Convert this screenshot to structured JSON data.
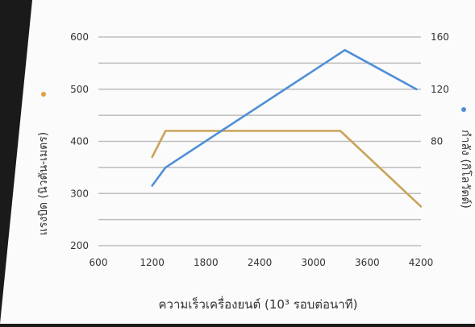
{
  "chart_data": {
    "type": "line",
    "x_label": "ความเร็วเครื่องยนต์ (10³ รอบต่อนาที)",
    "y_left_label": "แรงบิด (นิวตัน-เมตร)",
    "y_right_label": "กำลัง (กิโลวัตต์)",
    "x_ticks": [
      600,
      1200,
      1800,
      2400,
      3000,
      3600,
      4200
    ],
    "y_left_ticks": [
      200,
      300,
      400,
      500,
      600
    ],
    "y_right_ticks": [
      80,
      120,
      160
    ],
    "xlim": [
      600,
      4200
    ],
    "y_left_lim": [
      200,
      600
    ],
    "y_right_lim": [
      0,
      160
    ],
    "grid": true,
    "series": [
      {
        "key": "torque",
        "axis": "left",
        "color": "#c9a45c",
        "x": [
          1200,
          1350,
          3300,
          4200
        ],
        "y": [
          370,
          420,
          420,
          275
        ]
      },
      {
        "key": "power",
        "axis": "right",
        "color": "#4f8fd6",
        "x": [
          1200,
          1350,
          3350,
          4150
        ],
        "y": [
          46,
          60,
          150,
          120
        ]
      }
    ],
    "legend_markers": [
      {
        "axis": "left",
        "color": "#e0a040"
      },
      {
        "axis": "right",
        "color": "#4f8fd6"
      }
    ]
  }
}
